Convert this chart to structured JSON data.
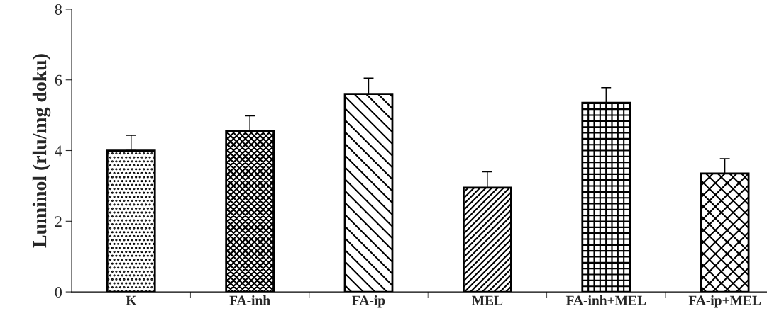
{
  "chart_data": {
    "type": "bar",
    "ylabel": "Luminol (rlu/mg doku)",
    "categories": [
      "K",
      "FA-inh",
      "FA-ip",
      "MEL",
      "FA-inh+MEL",
      "FA-ip+MEL"
    ],
    "values": [
      4.0,
      4.55,
      5.6,
      2.95,
      5.35,
      3.35
    ],
    "errors": [
      [
        4.0,
        4.43
      ],
      [
        4.55,
        4.98
      ],
      [
        5.6,
        6.05
      ],
      [
        2.95,
        3.4
      ],
      [
        5.35,
        5.78
      ],
      [
        3.35,
        3.77
      ]
    ],
    "ylim": [
      0,
      8
    ],
    "yticks": [
      0,
      2,
      4,
      6,
      8
    ],
    "grid": false
  }
}
